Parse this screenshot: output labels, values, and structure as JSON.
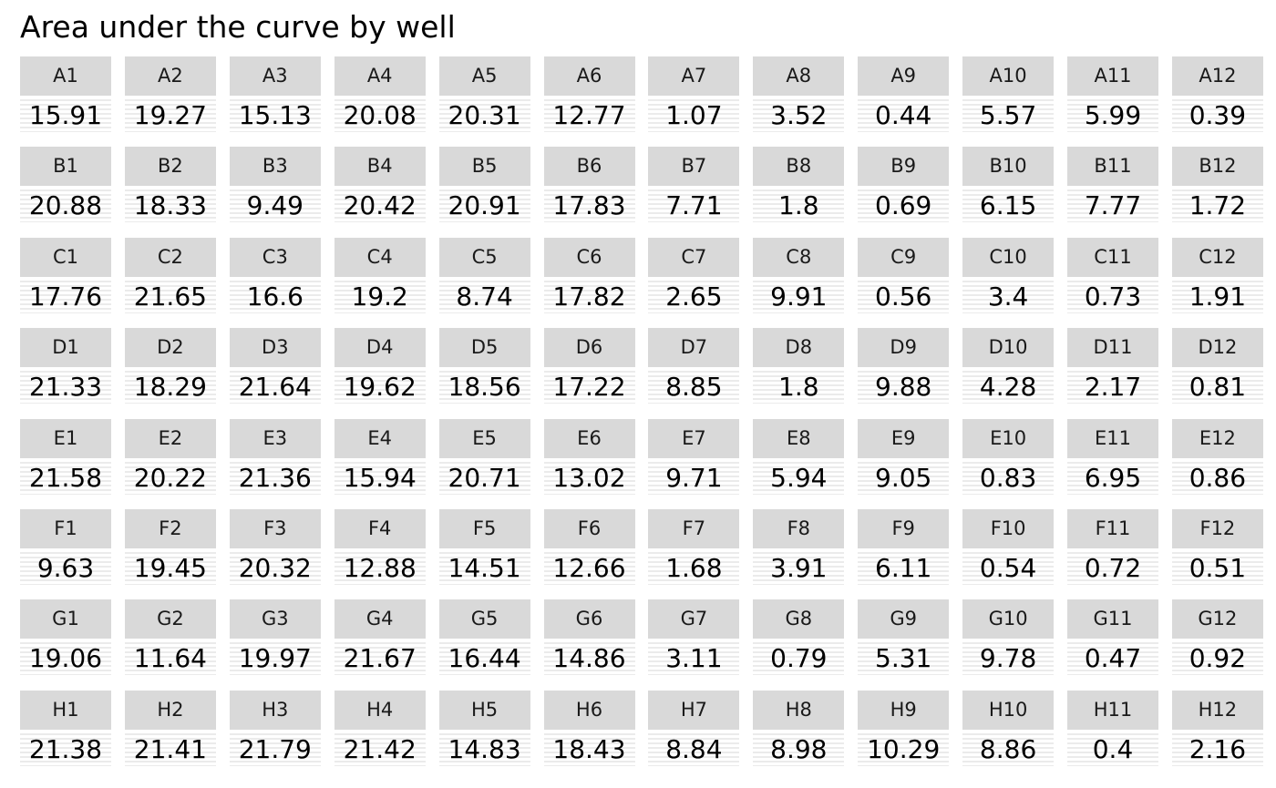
{
  "chart_data": {
    "type": "table",
    "title": "Area under the curve by well",
    "rows": [
      "A",
      "B",
      "C",
      "D",
      "E",
      "F",
      "G",
      "H"
    ],
    "columns": [
      "1",
      "2",
      "3",
      "4",
      "5",
      "6",
      "7",
      "8",
      "9",
      "10",
      "11",
      "12"
    ],
    "wells": [
      [
        {
          "label": "A1",
          "value": "15.91"
        },
        {
          "label": "A2",
          "value": "19.27"
        },
        {
          "label": "A3",
          "value": "15.13"
        },
        {
          "label": "A4",
          "value": "20.08"
        },
        {
          "label": "A5",
          "value": "20.31"
        },
        {
          "label": "A6",
          "value": "12.77"
        },
        {
          "label": "A7",
          "value": "1.07"
        },
        {
          "label": "A8",
          "value": "3.52"
        },
        {
          "label": "A9",
          "value": "0.44"
        },
        {
          "label": "A10",
          "value": "5.57"
        },
        {
          "label": "A11",
          "value": "5.99"
        },
        {
          "label": "A12",
          "value": "0.39"
        }
      ],
      [
        {
          "label": "B1",
          "value": "20.88"
        },
        {
          "label": "B2",
          "value": "18.33"
        },
        {
          "label": "B3",
          "value": "9.49"
        },
        {
          "label": "B4",
          "value": "20.42"
        },
        {
          "label": "B5",
          "value": "20.91"
        },
        {
          "label": "B6",
          "value": "17.83"
        },
        {
          "label": "B7",
          "value": "7.71"
        },
        {
          "label": "B8",
          "value": "1.8"
        },
        {
          "label": "B9",
          "value": "0.69"
        },
        {
          "label": "B10",
          "value": "6.15"
        },
        {
          "label": "B11",
          "value": "7.77"
        },
        {
          "label": "B12",
          "value": "1.72"
        }
      ],
      [
        {
          "label": "C1",
          "value": "17.76"
        },
        {
          "label": "C2",
          "value": "21.65"
        },
        {
          "label": "C3",
          "value": "16.6"
        },
        {
          "label": "C4",
          "value": "19.2"
        },
        {
          "label": "C5",
          "value": "8.74"
        },
        {
          "label": "C6",
          "value": "17.82"
        },
        {
          "label": "C7",
          "value": "2.65"
        },
        {
          "label": "C8",
          "value": "9.91"
        },
        {
          "label": "C9",
          "value": "0.56"
        },
        {
          "label": "C10",
          "value": "3.4"
        },
        {
          "label": "C11",
          "value": "0.73"
        },
        {
          "label": "C12",
          "value": "1.91"
        }
      ],
      [
        {
          "label": "D1",
          "value": "21.33"
        },
        {
          "label": "D2",
          "value": "18.29"
        },
        {
          "label": "D3",
          "value": "21.64"
        },
        {
          "label": "D4",
          "value": "19.62"
        },
        {
          "label": "D5",
          "value": "18.56"
        },
        {
          "label": "D6",
          "value": "17.22"
        },
        {
          "label": "D7",
          "value": "8.85"
        },
        {
          "label": "D8",
          "value": "1.8"
        },
        {
          "label": "D9",
          "value": "9.88"
        },
        {
          "label": "D10",
          "value": "4.28"
        },
        {
          "label": "D11",
          "value": "2.17"
        },
        {
          "label": "D12",
          "value": "0.81"
        }
      ],
      [
        {
          "label": "E1",
          "value": "21.58"
        },
        {
          "label": "E2",
          "value": "20.22"
        },
        {
          "label": "E3",
          "value": "21.36"
        },
        {
          "label": "E4",
          "value": "15.94"
        },
        {
          "label": "E5",
          "value": "20.71"
        },
        {
          "label": "E6",
          "value": "13.02"
        },
        {
          "label": "E7",
          "value": "9.71"
        },
        {
          "label": "E8",
          "value": "5.94"
        },
        {
          "label": "E9",
          "value": "9.05"
        },
        {
          "label": "E10",
          "value": "0.83"
        },
        {
          "label": "E11",
          "value": "6.95"
        },
        {
          "label": "E12",
          "value": "0.86"
        }
      ],
      [
        {
          "label": "F1",
          "value": "9.63"
        },
        {
          "label": "F2",
          "value": "19.45"
        },
        {
          "label": "F3",
          "value": "20.32"
        },
        {
          "label": "F4",
          "value": "12.88"
        },
        {
          "label": "F5",
          "value": "14.51"
        },
        {
          "label": "F6",
          "value": "12.66"
        },
        {
          "label": "F7",
          "value": "1.68"
        },
        {
          "label": "F8",
          "value": "3.91"
        },
        {
          "label": "F9",
          "value": "6.11"
        },
        {
          "label": "F10",
          "value": "0.54"
        },
        {
          "label": "F11",
          "value": "0.72"
        },
        {
          "label": "F12",
          "value": "0.51"
        }
      ],
      [
        {
          "label": "G1",
          "value": "19.06"
        },
        {
          "label": "G2",
          "value": "11.64"
        },
        {
          "label": "G3",
          "value": "19.97"
        },
        {
          "label": "G4",
          "value": "21.67"
        },
        {
          "label": "G5",
          "value": "16.44"
        },
        {
          "label": "G6",
          "value": "14.86"
        },
        {
          "label": "G7",
          "value": "3.11"
        },
        {
          "label": "G8",
          "value": "0.79"
        },
        {
          "label": "G9",
          "value": "5.31"
        },
        {
          "label": "G10",
          "value": "9.78"
        },
        {
          "label": "G11",
          "value": "0.47"
        },
        {
          "label": "G12",
          "value": "0.92"
        }
      ],
      [
        {
          "label": "H1",
          "value": "21.38"
        },
        {
          "label": "H2",
          "value": "21.41"
        },
        {
          "label": "H3",
          "value": "21.79"
        },
        {
          "label": "H4",
          "value": "21.42"
        },
        {
          "label": "H5",
          "value": "14.83"
        },
        {
          "label": "H6",
          "value": "18.43"
        },
        {
          "label": "H7",
          "value": "8.84"
        },
        {
          "label": "H8",
          "value": "8.98"
        },
        {
          "label": "H9",
          "value": "10.29"
        },
        {
          "label": "H10",
          "value": "8.86"
        },
        {
          "label": "H11",
          "value": "0.4"
        },
        {
          "label": "H12",
          "value": "2.16"
        }
      ]
    ],
    "colors": {
      "strip_background": "#d9d9d9",
      "strip_text": "#1a1a1a",
      "panel_background": "#ebebeb",
      "gridline": "#ffffff",
      "value_text": "#000000"
    }
  }
}
